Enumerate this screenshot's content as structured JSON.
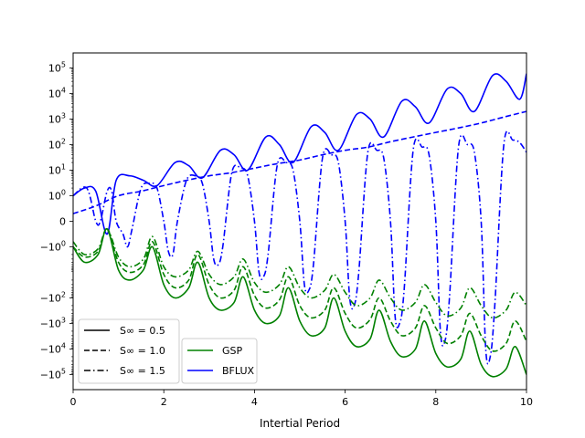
{
  "chart_data": {
    "type": "line",
    "title": "",
    "xlabel": "Intertial Period",
    "ylabel": "",
    "xlim": [
      0,
      10
    ],
    "yscale": "symlog",
    "ylim": [
      -200000,
      200000
    ],
    "x_ticks": [
      "0",
      "2",
      "4",
      "6",
      "8",
      "10"
    ],
    "y_ticks": [
      {
        "v": 100000,
        "base": "10",
        "exp": "5"
      },
      {
        "v": 10000,
        "base": "10",
        "exp": "4"
      },
      {
        "v": 1000,
        "base": "10",
        "exp": "3"
      },
      {
        "v": 100,
        "base": "10",
        "exp": "2"
      },
      {
        "v": 10,
        "base": "10",
        "exp": "1"
      },
      {
        "v": 1,
        "base": "10",
        "exp": "0"
      },
      {
        "v": 0,
        "base": "0",
        "exp": ""
      },
      {
        "v": -1,
        "base": "−10",
        "exp": "0"
      },
      {
        "v": -100,
        "base": "−10",
        "exp": "2"
      },
      {
        "v": -1000,
        "base": "−10",
        "exp": "3"
      },
      {
        "v": -10000,
        "base": "−10",
        "exp": "4"
      },
      {
        "v": -100000,
        "base": "−10",
        "exp": "5"
      }
    ],
    "colors": {
      "GSP": "#008000",
      "BFLUX": "#0000ff"
    },
    "legend_styles": {
      "title": "",
      "placement": "lower-left",
      "entries": [
        {
          "label": "S∞ = 0.5",
          "dash": "solid"
        },
        {
          "label": "S∞ = 1.0",
          "dash": "dashed"
        },
        {
          "label": "S∞ = 1.5",
          "dash": "dashdot"
        }
      ]
    },
    "legend_series": {
      "title": "",
      "placement": "lower-left",
      "entries": [
        {
          "label": "GSP",
          "color": "#008000"
        },
        {
          "label": "BFLUX",
          "color": "#0000ff"
        }
      ]
    },
    "series": [
      {
        "quantity": "BFLUX",
        "style": "solid",
        "x": [
          0,
          0.25,
          0.5,
          0.75,
          0.95,
          1.25,
          1.55,
          1.85,
          2.25,
          2.55,
          2.85,
          3.25,
          3.55,
          3.85,
          4.25,
          4.55,
          4.85,
          5.25,
          5.55,
          5.85,
          6.25,
          6.55,
          6.85,
          7.25,
          7.55,
          7.85,
          8.25,
          8.55,
          8.85,
          9.25,
          9.55,
          9.85,
          10
        ],
        "y": [
          1,
          2,
          1.5,
          -0.5,
          4,
          6,
          4,
          2.5,
          20,
          15,
          5,
          60,
          40,
          10,
          200,
          100,
          20,
          500,
          300,
          60,
          1500,
          1000,
          200,
          5000,
          3000,
          700,
          15000,
          10000,
          2000,
          50000,
          30000,
          6000,
          60000
        ]
      },
      {
        "quantity": "BFLUX",
        "style": "dashed",
        "x": [
          0,
          0.5,
          1,
          1.5,
          2,
          2.5,
          3,
          3.5,
          4,
          4.5,
          5,
          5.5,
          6,
          6.5,
          7,
          7.5,
          8,
          8.5,
          9,
          9.5,
          10
        ],
        "y": [
          0.3,
          0.6,
          1,
          1.5,
          2.5,
          4,
          6,
          8,
          12,
          18,
          25,
          40,
          60,
          80,
          130,
          200,
          300,
          450,
          700,
          1200,
          2000
        ]
      },
      {
        "quantity": "BFLUX",
        "style": "dashdot",
        "x": [
          0,
          0.3,
          0.5,
          0.6,
          0.75,
          0.85,
          0.95,
          1.1,
          1.2,
          1.3,
          1.5,
          1.7,
          1.85,
          2,
          2.1,
          2.2,
          2.3,
          2.5,
          2.7,
          2.85,
          3,
          3.1,
          3.2,
          3.3,
          3.5,
          3.7,
          3.85,
          4,
          4.1,
          4.2,
          4.3,
          4.5,
          4.7,
          4.85,
          5,
          5.1,
          5.2,
          5.3,
          5.5,
          5.7,
          5.85,
          6,
          6.1,
          6.2,
          6.3,
          6.5,
          6.7,
          6.85,
          7,
          7.1,
          7.2,
          7.3,
          7.5,
          7.7,
          7.85,
          8,
          8.1,
          8.2,
          8.3,
          8.5,
          8.7,
          8.85,
          9,
          9.1,
          9.2,
          9.3,
          9.5,
          9.7,
          9.85,
          10
        ],
        "y": [
          1,
          2,
          0,
          0,
          1.5,
          1.5,
          0,
          -0.5,
          -1,
          -0.3,
          2,
          3,
          2,
          0,
          -1.5,
          -2,
          0,
          4,
          6,
          3,
          0,
          -3,
          -5,
          -1,
          8,
          12,
          6,
          0,
          -10,
          -15,
          -2,
          15,
          20,
          10,
          0,
          -30,
          -50,
          -5,
          30,
          40,
          20,
          0,
          -100,
          -200,
          -10,
          50,
          60,
          30,
          0,
          -500,
          -1000,
          -50,
          60,
          80,
          40,
          0,
          -2000,
          -5000,
          -100,
          80,
          100,
          50,
          0,
          -10000,
          -20000,
          -200,
          100,
          150,
          120,
          50
        ]
      },
      {
        "quantity": "GSP",
        "style": "solid",
        "x": [
          0,
          0.25,
          0.55,
          0.75,
          1,
          1.25,
          1.55,
          1.75,
          2,
          2.25,
          2.55,
          2.75,
          3,
          3.25,
          3.55,
          3.75,
          4,
          4.25,
          4.55,
          4.75,
          5,
          5.25,
          5.55,
          5.75,
          6,
          6.25,
          6.55,
          6.75,
          7,
          7.25,
          7.55,
          7.75,
          8,
          8.25,
          8.55,
          8.75,
          9,
          9.25,
          9.55,
          9.75,
          10
        ],
        "y": [
          -1,
          -4,
          -2,
          -0.3,
          -8,
          -20,
          -8,
          -1,
          -30,
          -100,
          -40,
          -4,
          -100,
          -300,
          -150,
          -15,
          -300,
          -1000,
          -500,
          -40,
          -800,
          -3000,
          -1500,
          -100,
          -2000,
          -8000,
          -4000,
          -300,
          -5000,
          -20000,
          -10000,
          -800,
          -15000,
          -50000,
          -25000,
          -2000,
          -40000,
          -120000,
          -60000,
          -8000,
          -100000
        ]
      },
      {
        "quantity": "GSP",
        "style": "dashed",
        "x": [
          0,
          0.25,
          0.55,
          0.75,
          1,
          1.25,
          1.55,
          1.75,
          2,
          2.25,
          2.55,
          2.75,
          3,
          3.25,
          3.55,
          3.75,
          4,
          4.25,
          4.55,
          4.75,
          5,
          5.25,
          5.55,
          5.75,
          6,
          6.25,
          6.55,
          6.75,
          7,
          7.25,
          7.55,
          7.75,
          8,
          8.25,
          8.55,
          8.75,
          9,
          9.25,
          9.55,
          9.75,
          10
        ],
        "y": [
          -1,
          -2.5,
          -1.5,
          -0.3,
          -4,
          -10,
          -5,
          -0.8,
          -12,
          -40,
          -20,
          -2,
          -30,
          -100,
          -50,
          -6,
          -80,
          -250,
          -120,
          -15,
          -200,
          -600,
          -300,
          -40,
          -400,
          -1500,
          -700,
          -100,
          -800,
          -3000,
          -1500,
          -200,
          -1500,
          -6000,
          -3000,
          -400,
          -3000,
          -12000,
          -6000,
          -800,
          -5000
        ]
      },
      {
        "quantity": "GSP",
        "style": "dashdot",
        "x": [
          0,
          0.25,
          0.55,
          0.75,
          1,
          1.25,
          1.55,
          1.75,
          2,
          2.25,
          2.55,
          2.75,
          3,
          3.25,
          3.55,
          3.75,
          4,
          4.25,
          4.55,
          4.75,
          5,
          5.25,
          5.55,
          5.75,
          6,
          6.25,
          6.55,
          6.75,
          7,
          7.25,
          7.55,
          7.75,
          8,
          8.25,
          8.55,
          8.75,
          9,
          9.25,
          9.55,
          9.75,
          10
        ],
        "y": [
          -0.8,
          -2,
          -1.2,
          -0.3,
          -2.5,
          -6,
          -3,
          -0.6,
          -6,
          -15,
          -8,
          -1.5,
          -12,
          -30,
          -15,
          -3,
          -25,
          -60,
          -30,
          -6,
          -40,
          -100,
          -50,
          -12,
          -60,
          -200,
          -100,
          -20,
          -100,
          -300,
          -150,
          -30,
          -150,
          -500,
          -250,
          -40,
          -200,
          -600,
          -300,
          -60,
          -200
        ]
      }
    ]
  }
}
